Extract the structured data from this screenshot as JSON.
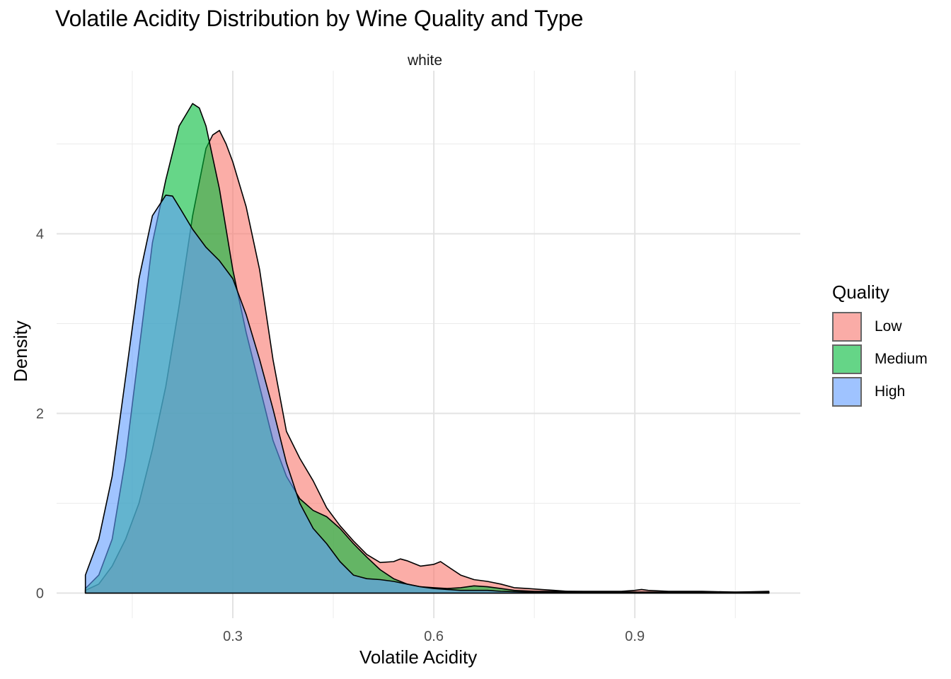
{
  "chart_data": {
    "type": "area",
    "title": "Volatile Acidity Distribution by Wine Quality and Type",
    "facet_label": "white",
    "xlabel": "Volatile Acidity",
    "ylabel": "Density",
    "xlim": [
      0.08,
      1.1
    ],
    "ylim": [
      0,
      5.55
    ],
    "x_ticks": [
      0.3,
      0.6,
      0.9
    ],
    "x_tick_labels": [
      "0.3",
      "0.6",
      "0.9"
    ],
    "y_ticks": [
      0,
      2,
      4
    ],
    "y_tick_labels": [
      "0",
      "2",
      "4"
    ],
    "grid": true,
    "legend": {
      "title": "Quality",
      "position": "right"
    },
    "series": [
      {
        "name": "Low",
        "color": "#F8766D",
        "x": [
          0.08,
          0.1,
          0.12,
          0.14,
          0.16,
          0.18,
          0.2,
          0.22,
          0.24,
          0.26,
          0.27,
          0.28,
          0.29,
          0.3,
          0.32,
          0.34,
          0.36,
          0.38,
          0.4,
          0.42,
          0.44,
          0.46,
          0.48,
          0.5,
          0.52,
          0.54,
          0.55,
          0.56,
          0.58,
          0.6,
          0.61,
          0.62,
          0.64,
          0.66,
          0.68,
          0.7,
          0.72,
          0.74,
          0.76,
          0.78,
          0.8,
          0.84,
          0.88,
          0.9,
          0.91,
          0.92,
          0.95,
          1.0,
          1.05,
          1.1
        ],
        "y": [
          0.03,
          0.1,
          0.3,
          0.6,
          1.0,
          1.6,
          2.3,
          3.2,
          4.2,
          4.95,
          5.1,
          5.15,
          5.0,
          4.8,
          4.3,
          3.6,
          2.6,
          1.8,
          1.5,
          1.25,
          0.95,
          0.75,
          0.58,
          0.43,
          0.34,
          0.35,
          0.38,
          0.36,
          0.3,
          0.32,
          0.35,
          0.3,
          0.2,
          0.15,
          0.13,
          0.1,
          0.06,
          0.05,
          0.04,
          0.03,
          0.02,
          0.02,
          0.02,
          0.03,
          0.04,
          0.03,
          0.02,
          0.02,
          0.01,
          0.02
        ]
      },
      {
        "name": "Medium",
        "color": "#00BA38",
        "x": [
          0.08,
          0.1,
          0.12,
          0.14,
          0.16,
          0.18,
          0.2,
          0.22,
          0.24,
          0.25,
          0.26,
          0.28,
          0.3,
          0.32,
          0.34,
          0.36,
          0.38,
          0.4,
          0.42,
          0.44,
          0.46,
          0.48,
          0.5,
          0.52,
          0.54,
          0.56,
          0.58,
          0.6,
          0.62,
          0.64,
          0.66,
          0.68,
          0.7,
          0.72,
          0.75,
          0.8,
          0.9,
          1.0,
          1.1
        ],
        "y": [
          0.05,
          0.2,
          0.6,
          1.5,
          2.7,
          3.9,
          4.6,
          5.2,
          5.45,
          5.4,
          5.2,
          4.5,
          3.6,
          2.9,
          2.3,
          1.7,
          1.3,
          1.05,
          0.92,
          0.85,
          0.72,
          0.55,
          0.4,
          0.26,
          0.16,
          0.1,
          0.07,
          0.06,
          0.05,
          0.06,
          0.08,
          0.07,
          0.05,
          0.03,
          0.02,
          0.02,
          0.01,
          0.01,
          0.01
        ]
      },
      {
        "name": "High",
        "color": "#619CFF",
        "x": [
          0.08,
          0.1,
          0.12,
          0.14,
          0.16,
          0.18,
          0.2,
          0.21,
          0.22,
          0.24,
          0.26,
          0.28,
          0.3,
          0.32,
          0.34,
          0.36,
          0.38,
          0.4,
          0.42,
          0.44,
          0.46,
          0.48,
          0.5,
          0.52,
          0.54,
          0.56,
          0.58,
          0.6,
          0.62,
          0.64,
          0.66,
          0.68,
          0.7,
          0.75,
          0.8,
          0.9,
          1.0,
          1.1
        ],
        "y": [
          0.2,
          0.6,
          1.3,
          2.4,
          3.5,
          4.2,
          4.43,
          4.42,
          4.3,
          4.05,
          3.85,
          3.7,
          3.5,
          3.1,
          2.6,
          2.05,
          1.45,
          1.0,
          0.72,
          0.55,
          0.35,
          0.2,
          0.16,
          0.15,
          0.13,
          0.1,
          0.07,
          0.05,
          0.04,
          0.03,
          0.03,
          0.03,
          0.02,
          0.01,
          0.01,
          0.01,
          0.01,
          0.01
        ]
      }
    ]
  }
}
